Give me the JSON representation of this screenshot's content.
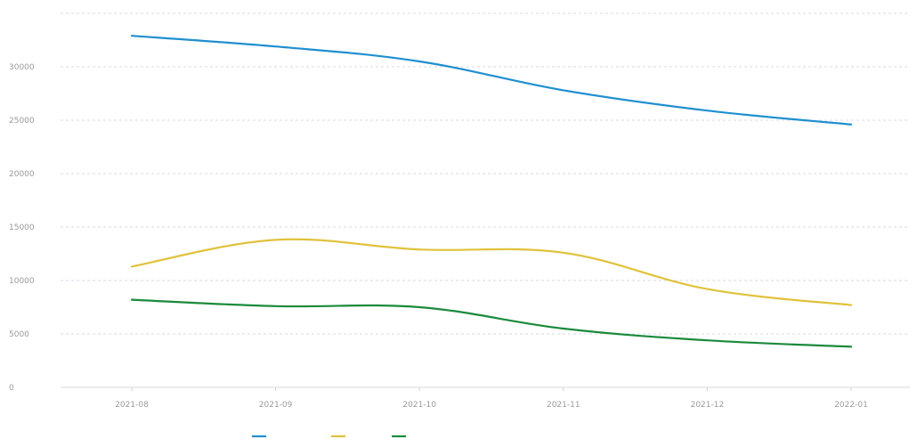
{
  "chart_data": {
    "type": "line",
    "title": "",
    "xlabel": "",
    "ylabel": "",
    "grid": true,
    "legend_position": "bottom-center",
    "categories": [
      "2021-08",
      "2021-09",
      "2021-10",
      "2021-11",
      "2021-12",
      "2022-01"
    ],
    "y_ticks": [
      0,
      5000,
      10000,
      15000,
      20000,
      25000,
      30000
    ],
    "ylim": [
      0,
      35000
    ],
    "series": [
      {
        "name": "",
        "color": "#1f8fd0",
        "values": [
          32900,
          31900,
          30500,
          27800,
          25900,
          24600
        ]
      },
      {
        "name": "",
        "color": "#e0c23c",
        "values": [
          11300,
          13800,
          12900,
          12600,
          9200,
          7700
        ]
      },
      {
        "name": "",
        "color": "#1a8a3c",
        "values": [
          8200,
          7600,
          7500,
          5500,
          4400,
          3800
        ]
      }
    ]
  }
}
